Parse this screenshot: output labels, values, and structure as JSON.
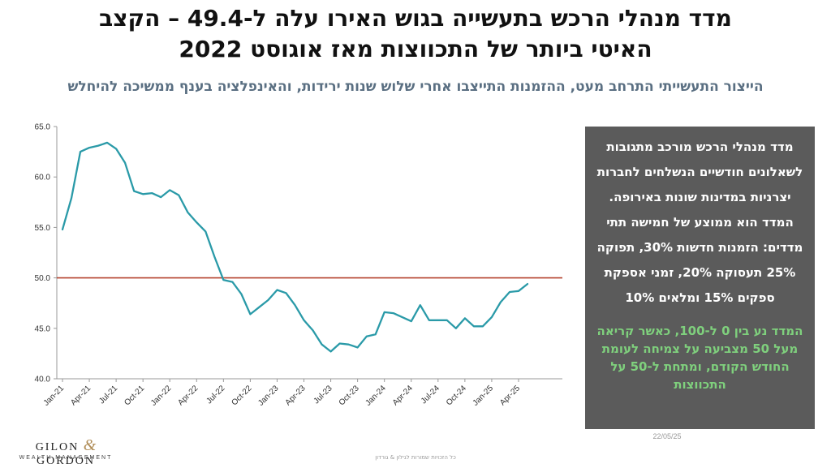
{
  "slide": {
    "title_line1": "מדד מנהלי הרכש בתעשייה בגוש האירו עלה ל-49.4 – הקצב",
    "title_line2": "האיטי ביותר של התכווצות מאז אוגוסט 2022",
    "subtitle": "הייצור התעשייתי התרחב מעט, ההזמנות התייצבו אחרי שלוש שנות ירידות, והאינפלציה בענף ממשיכה להיחלש"
  },
  "infobox": {
    "text_white": "מדד מנהלי הרכש מורכב  מתגובות לשאלונים חודשיים הנשלחים לחברות יצרניות במדינות שונות באירופה. המדד הוא ממוצע של חמישה תתי מדדים: הזמנות חדשות 30%, תפוקה 25% תעסוקה 20%, זמני אספקת ספקים 15% ומלאים 10%",
    "text_green": "המדד נע בין 0 ל-100, כאשר קריאה מעל 50 מצביעה על צמיחה לעומת החודש הקודם, ומתחת ל-50 על התכווצות"
  },
  "date_label": "22/05/25",
  "logo": {
    "name_left": "GILON",
    "ampersand": "&",
    "name_right": "GORDON",
    "tagline": "WEALTH MANAGEMENT"
  },
  "footer_text": "כל הזכויות שמורות לגילון & גורדון",
  "colors": {
    "line": "#2a9aa8",
    "threshold": "#b5432f",
    "infobox_bg": "#5b5b5b",
    "subtitle": "#5a6f82",
    "green_text": "#7fd07d"
  },
  "chart_data": {
    "type": "line",
    "ylim": [
      40.0,
      65.0
    ],
    "yticks": [
      "40.0",
      "45.0",
      "50.0",
      "55.0",
      "60.0",
      "65.0"
    ],
    "xtick_labels": [
      "Jan-21",
      "Apr-21",
      "Jul-21",
      "Oct-21",
      "Jan-22",
      "Apr-22",
      "Jul-22",
      "Oct-22",
      "Jan-23",
      "Apr-23",
      "Jul-23",
      "Oct-23",
      "Jan-24",
      "Apr-24",
      "Jul-24",
      "Oct-24",
      "Jan-25",
      "Apr-25"
    ],
    "threshold": 50.0,
    "series": [
      {
        "values": [
          54.8,
          57.9,
          62.5,
          62.9,
          63.1,
          63.4,
          62.8,
          61.4,
          58.6,
          58.3,
          58.4,
          58.0,
          58.7,
          58.2,
          56.5,
          55.5,
          54.6,
          52.1,
          49.8,
          49.6,
          48.4,
          46.4,
          47.1,
          47.8,
          48.8,
          48.5,
          47.3,
          45.8,
          44.8,
          43.4,
          42.7,
          43.5,
          43.4,
          43.1,
          44.2,
          44.4,
          46.6,
          46.5,
          46.1,
          45.7,
          47.3,
          45.8,
          45.8,
          45.8,
          45.0,
          46.0,
          45.2,
          45.2,
          46.1,
          47.6,
          48.6,
          48.7,
          49.4
        ]
      }
    ]
  }
}
